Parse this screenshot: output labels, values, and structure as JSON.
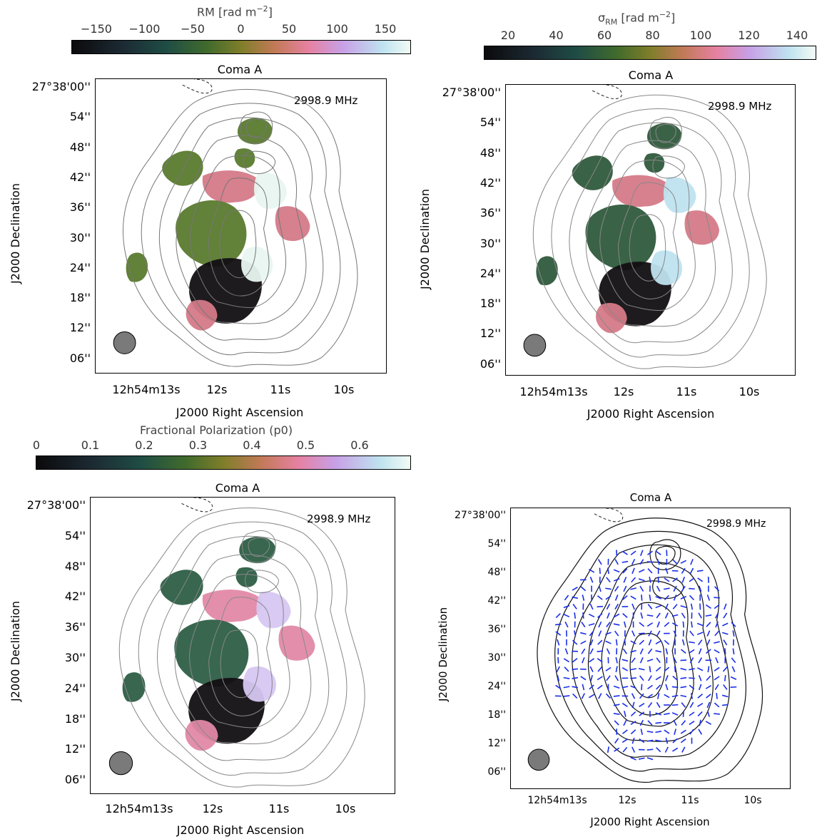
{
  "source": "Coma A",
  "frequency": "2998.9 MHz",
  "colorbars": {
    "rm": {
      "title_main": "RM",
      "title_unit": "[rad m",
      "title_exp": "−2",
      "title_end": "]",
      "ticks": [
        "−150",
        "−100",
        "−50",
        "0",
        "50",
        "100",
        "150"
      ]
    },
    "sigma": {
      "title_main": "σ",
      "title_sub": "RM",
      "title_unit": "[rad m",
      "title_exp": "−2",
      "title_end": "]",
      "ticks": [
        "20",
        "40",
        "60",
        "80",
        "100",
        "120",
        "140"
      ]
    },
    "frac": {
      "title": "Fractional Polarization (p0)",
      "ticks": [
        "0",
        "0.1",
        "0.2",
        "0.3",
        "0.4",
        "0.5",
        "0.6"
      ]
    }
  },
  "axes": {
    "xlabel": "J2000 Right Ascension",
    "ylabel": "J2000 Declination",
    "dec_ticks_first": "27°38'00''",
    "dec_ticks": [
      "54''",
      "48''",
      "42''",
      "36''",
      "30''",
      "24''",
      "18''",
      "12''",
      "06''"
    ],
    "ra_first": "12h54m13s",
    "ra_ticks": [
      "12s",
      "11s",
      "10s"
    ]
  },
  "colors": {
    "map_low": "#120f12",
    "map_mid": "#5a7a2e",
    "map_pink": "#d57a88",
    "map_high": "#e8f5f0",
    "vectors": "#1a2ee8",
    "beam": "#7a7a7a"
  }
}
